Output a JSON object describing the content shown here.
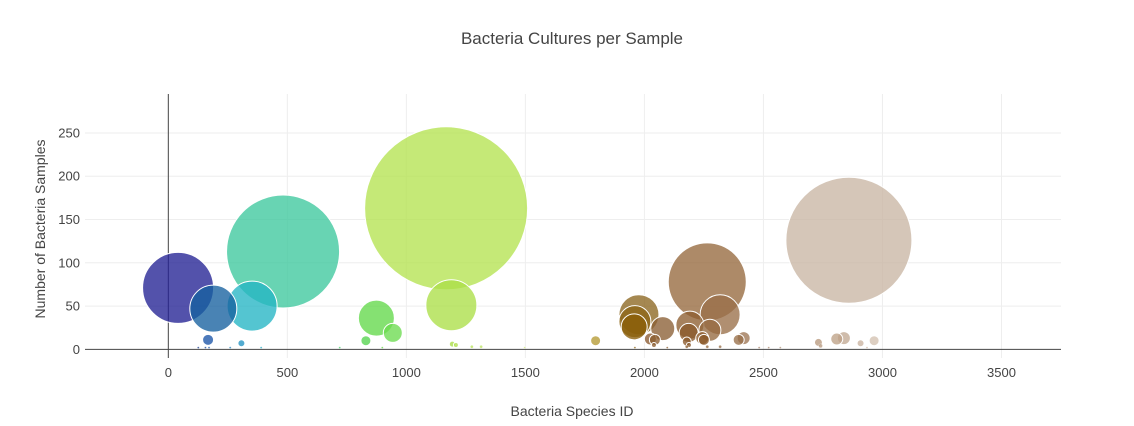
{
  "chart_data": {
    "type": "scatter",
    "title": "Bacteria Cultures per Sample",
    "xlabel": "Bacteria Species ID",
    "ylabel": "Number of Bacteria Samples",
    "xlim": [
      -350,
      3750
    ],
    "ylim": [
      -10,
      295
    ],
    "xticks": [
      0,
      500,
      1000,
      1500,
      2000,
      2500,
      3000,
      3500
    ],
    "yticks": [
      0,
      50,
      100,
      150,
      200,
      250
    ],
    "grid": true,
    "legend": "none",
    "points": [
      {
        "x": 1167,
        "y": 163,
        "size": 163,
        "color": "#b5e351"
      },
      {
        "x": 2859,
        "y": 126,
        "size": 126,
        "color": "#c9b6a4"
      },
      {
        "x": 482,
        "y": 113,
        "size": 113,
        "color": "#3dc89d"
      },
      {
        "x": 2264,
        "y": 78,
        "size": 78,
        "color": "#96693e"
      },
      {
        "x": 41,
        "y": 71,
        "size": 71,
        "color": "#232193"
      },
      {
        "x": 1189,
        "y": 51,
        "size": 51,
        "color": "#acdf48"
      },
      {
        "x": 352,
        "y": 50,
        "size": 50,
        "color": "#24b5c4"
      },
      {
        "x": 189,
        "y": 47,
        "size": 47,
        "color": "#16609f"
      },
      {
        "x": 2318,
        "y": 40,
        "size": 40,
        "color": "#9a7049"
      },
      {
        "x": 1977,
        "y": 40,
        "size": 40,
        "color": "#8c6620"
      },
      {
        "x": 874,
        "y": 36,
        "size": 36,
        "color": "#63d84a"
      },
      {
        "x": 1960,
        "y": 32,
        "size": 32,
        "color": "#8d6516"
      },
      {
        "x": 2191,
        "y": 28,
        "size": 28,
        "color": "#8d5e30"
      },
      {
        "x": 1957,
        "y": 26,
        "size": 26,
        "color": "#8a5d08"
      },
      {
        "x": 2077,
        "y": 24,
        "size": 24,
        "color": "#8b5f35"
      },
      {
        "x": 2275,
        "y": 22,
        "size": 22,
        "color": "#95693f"
      },
      {
        "x": 2186,
        "y": 19,
        "size": 19,
        "color": "#8b5a2b"
      },
      {
        "x": 943,
        "y": 19,
        "size": 19,
        "color": "#6cdb4f"
      },
      {
        "x": 2417,
        "y": 13,
        "size": 13,
        "color": "#9d7654"
      },
      {
        "x": 2243,
        "y": 13,
        "size": 13,
        "color": "#8c5b2c"
      },
      {
        "x": 2838,
        "y": 13,
        "size": 13,
        "color": "#c2a993"
      },
      {
        "x": 2808,
        "y": 12,
        "size": 12,
        "color": "#bea287"
      },
      {
        "x": 2025,
        "y": 12,
        "size": 12,
        "color": "#8b5a2f"
      },
      {
        "x": 2250,
        "y": 11,
        "size": 11,
        "color": "#8c5a2a"
      },
      {
        "x": 167,
        "y": 11,
        "size": 11,
        "color": "#1b54a8"
      },
      {
        "x": 2396,
        "y": 11,
        "size": 11,
        "color": "#987049"
      },
      {
        "x": 2044,
        "y": 11,
        "size": 11,
        "color": "#8c5d31"
      },
      {
        "x": 2965,
        "y": 10,
        "size": 10,
        "color": "#d3c1b1"
      },
      {
        "x": 1795,
        "y": 10,
        "size": 10,
        "color": "#b59a33"
      },
      {
        "x": 830,
        "y": 10,
        "size": 10,
        "color": "#54d44e"
      },
      {
        "x": 2178,
        "y": 9,
        "size": 9,
        "color": "#8b5a2b"
      },
      {
        "x": 2731,
        "y": 8,
        "size": 8,
        "color": "#b89a7f"
      },
      {
        "x": 2908,
        "y": 7,
        "size": 7,
        "color": "#cbb4a0"
      },
      {
        "x": 307,
        "y": 7,
        "size": 7,
        "color": "#2293c3"
      },
      {
        "x": 1193,
        "y": 6,
        "size": 6,
        "color": "#a9dd47"
      },
      {
        "x": 1208,
        "y": 5,
        "size": 5,
        "color": "#afdf4a"
      },
      {
        "x": 2040,
        "y": 5,
        "size": 5,
        "color": "#8c5d31"
      },
      {
        "x": 2187,
        "y": 5,
        "size": 5,
        "color": "#8b5a2b"
      },
      {
        "x": 2740,
        "y": 4,
        "size": 4,
        "color": "#b89b81"
      },
      {
        "x": 1275,
        "y": 3,
        "size": 3,
        "color": "#b9e45a"
      },
      {
        "x": 1314,
        "y": 3,
        "size": 3,
        "color": "#bde462"
      },
      {
        "x": 2178,
        "y": 3,
        "size": 3,
        "color": "#8b5a2b"
      },
      {
        "x": 2264,
        "y": 3,
        "size": 3,
        "color": "#96693e"
      },
      {
        "x": 2318,
        "y": 3,
        "size": 3,
        "color": "#9a7049"
      },
      {
        "x": 126,
        "y": 2,
        "size": 2,
        "color": "#1c3e8c"
      },
      {
        "x": 156,
        "y": 2,
        "size": 2,
        "color": "#1d4e9e"
      },
      {
        "x": 171,
        "y": 2,
        "size": 2,
        "color": "#1b56a6"
      },
      {
        "x": 260,
        "y": 2,
        "size": 2,
        "color": "#2080bb"
      },
      {
        "x": 390,
        "y": 2,
        "size": 2,
        "color": "#23a9c4"
      },
      {
        "x": 720,
        "y": 2,
        "size": 2,
        "color": "#48cf6a"
      },
      {
        "x": 899,
        "y": 2,
        "size": 2,
        "color": "#66d94a"
      },
      {
        "x": 1497,
        "y": 2,
        "size": 2,
        "color": "#d4e888"
      },
      {
        "x": 1960,
        "y": 2,
        "size": 2,
        "color": "#8d6516"
      },
      {
        "x": 2096,
        "y": 2,
        "size": 2,
        "color": "#8b5d31"
      },
      {
        "x": 2482,
        "y": 2,
        "size": 2,
        "color": "#a88369"
      },
      {
        "x": 2522,
        "y": 2,
        "size": 2,
        "color": "#ad8d74"
      },
      {
        "x": 2571,
        "y": 2,
        "size": 2,
        "color": "#b1957c"
      },
      {
        "x": 2935,
        "y": 2,
        "size": 2,
        "color": "#cfb9a7"
      }
    ]
  }
}
